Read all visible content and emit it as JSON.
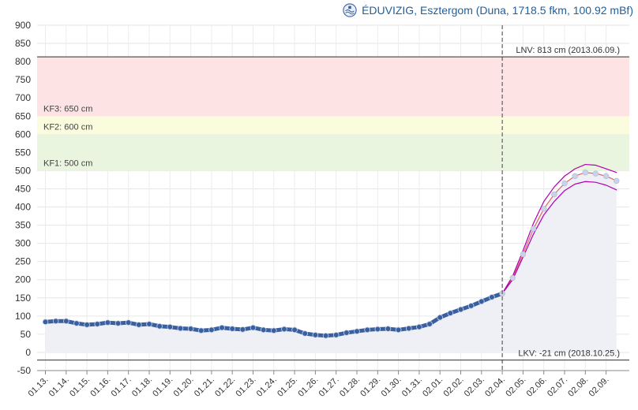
{
  "header": {
    "title": "ÉDUVIZIG, Esztergom (Duna, 1718.5 fkm, 100.92 mBf)",
    "logo_icon": "eduvizig-emblem-icon"
  },
  "chart_data": {
    "type": "line",
    "title": "ÉDUVIZIG, Esztergom (Duna, 1718.5 fkm, 100.92 mBf)",
    "xlabel": "",
    "ylabel": "",
    "ylim": [
      -50,
      900
    ],
    "yticks": [
      -50,
      0,
      50,
      100,
      150,
      200,
      250,
      300,
      350,
      400,
      450,
      500,
      550,
      600,
      650,
      700,
      750,
      800,
      850,
      900
    ],
    "xticks": [
      "01.13.",
      "01.14.",
      "01.15.",
      "01.16.",
      "01.17.",
      "01.18.",
      "01.19.",
      "01.20.",
      "01.21.",
      "01.22.",
      "01.23.",
      "01.24.",
      "01.25.",
      "01.26.",
      "01.27.",
      "01.28.",
      "01.29.",
      "01.30.",
      "01.31.",
      "02.01.",
      "02.02.",
      "02.03.",
      "02.04.",
      "02.05.",
      "02.06.",
      "02.07.",
      "02.08.",
      "02.09."
    ],
    "x_unit": "day index (0 = 01.13.)",
    "grid": true,
    "now_marker_x": 22.0,
    "bands": [
      {
        "name": "KF3",
        "label": "KF3: 650 cm",
        "from": 650,
        "to": 813,
        "color": "#fde3e3"
      },
      {
        "name": "KF2",
        "label": "KF2: 600 cm",
        "from": 600,
        "to": 650,
        "color": "#fbfbdd"
      },
      {
        "name": "KF1",
        "label": "KF1: 500 cm",
        "from": 500,
        "to": 600,
        "color": "#eaf5e0"
      }
    ],
    "reference_lines": [
      {
        "name": "LNV",
        "label": "LNV: 813 cm (2013.06.09.)",
        "value": 813
      },
      {
        "name": "LKV",
        "label": "LKV: -21 cm (2018.10.25.)",
        "value": -21
      }
    ],
    "series": [
      {
        "name": "measured",
        "color": "#3a5f9f",
        "x": [
          0,
          0.5,
          1,
          1.5,
          2,
          2.5,
          3,
          3.5,
          4,
          4.5,
          5,
          5.5,
          6,
          6.5,
          7,
          7.5,
          8,
          8.5,
          9,
          9.5,
          10,
          10.5,
          11,
          11.5,
          12,
          12.5,
          13,
          13.5,
          14,
          14.5,
          15,
          15.5,
          16,
          16.5,
          17,
          17.5,
          18,
          18.5,
          19,
          19.5,
          20,
          20.5,
          21,
          21.5,
          22
        ],
        "values": [
          84,
          86,
          86,
          80,
          76,
          78,
          82,
          80,
          82,
          76,
          78,
          72,
          70,
          66,
          65,
          60,
          62,
          68,
          65,
          63,
          68,
          62,
          60,
          64,
          62,
          52,
          48,
          46,
          48,
          54,
          58,
          62,
          64,
          65,
          62,
          66,
          70,
          78,
          96,
          108,
          118,
          128,
          140,
          152,
          162
        ]
      },
      {
        "name": "forecast",
        "color": "#e06666",
        "x": [
          22,
          22.5,
          23,
          23.5,
          24,
          24.5,
          25,
          25.5,
          26,
          26.5,
          27,
          27.5
        ],
        "values": [
          162,
          205,
          270,
          340,
          395,
          435,
          465,
          485,
          495,
          492,
          485,
          472
        ]
      },
      {
        "name": "upper",
        "color": "#b000b0",
        "x": [
          22,
          22.5,
          23,
          23.5,
          24,
          24.5,
          25,
          25.5,
          26,
          26.5,
          27,
          27.5
        ],
        "values": [
          162,
          210,
          280,
          355,
          415,
          455,
          485,
          505,
          517,
          515,
          505,
          495
        ]
      },
      {
        "name": "lower",
        "color": "#b000b0",
        "x": [
          22,
          22.5,
          23,
          23.5,
          24,
          24.5,
          25,
          25.5,
          26,
          26.5,
          27,
          27.5
        ],
        "values": [
          162,
          200,
          262,
          325,
          378,
          415,
          445,
          463,
          470,
          468,
          460,
          447
        ]
      }
    ]
  }
}
